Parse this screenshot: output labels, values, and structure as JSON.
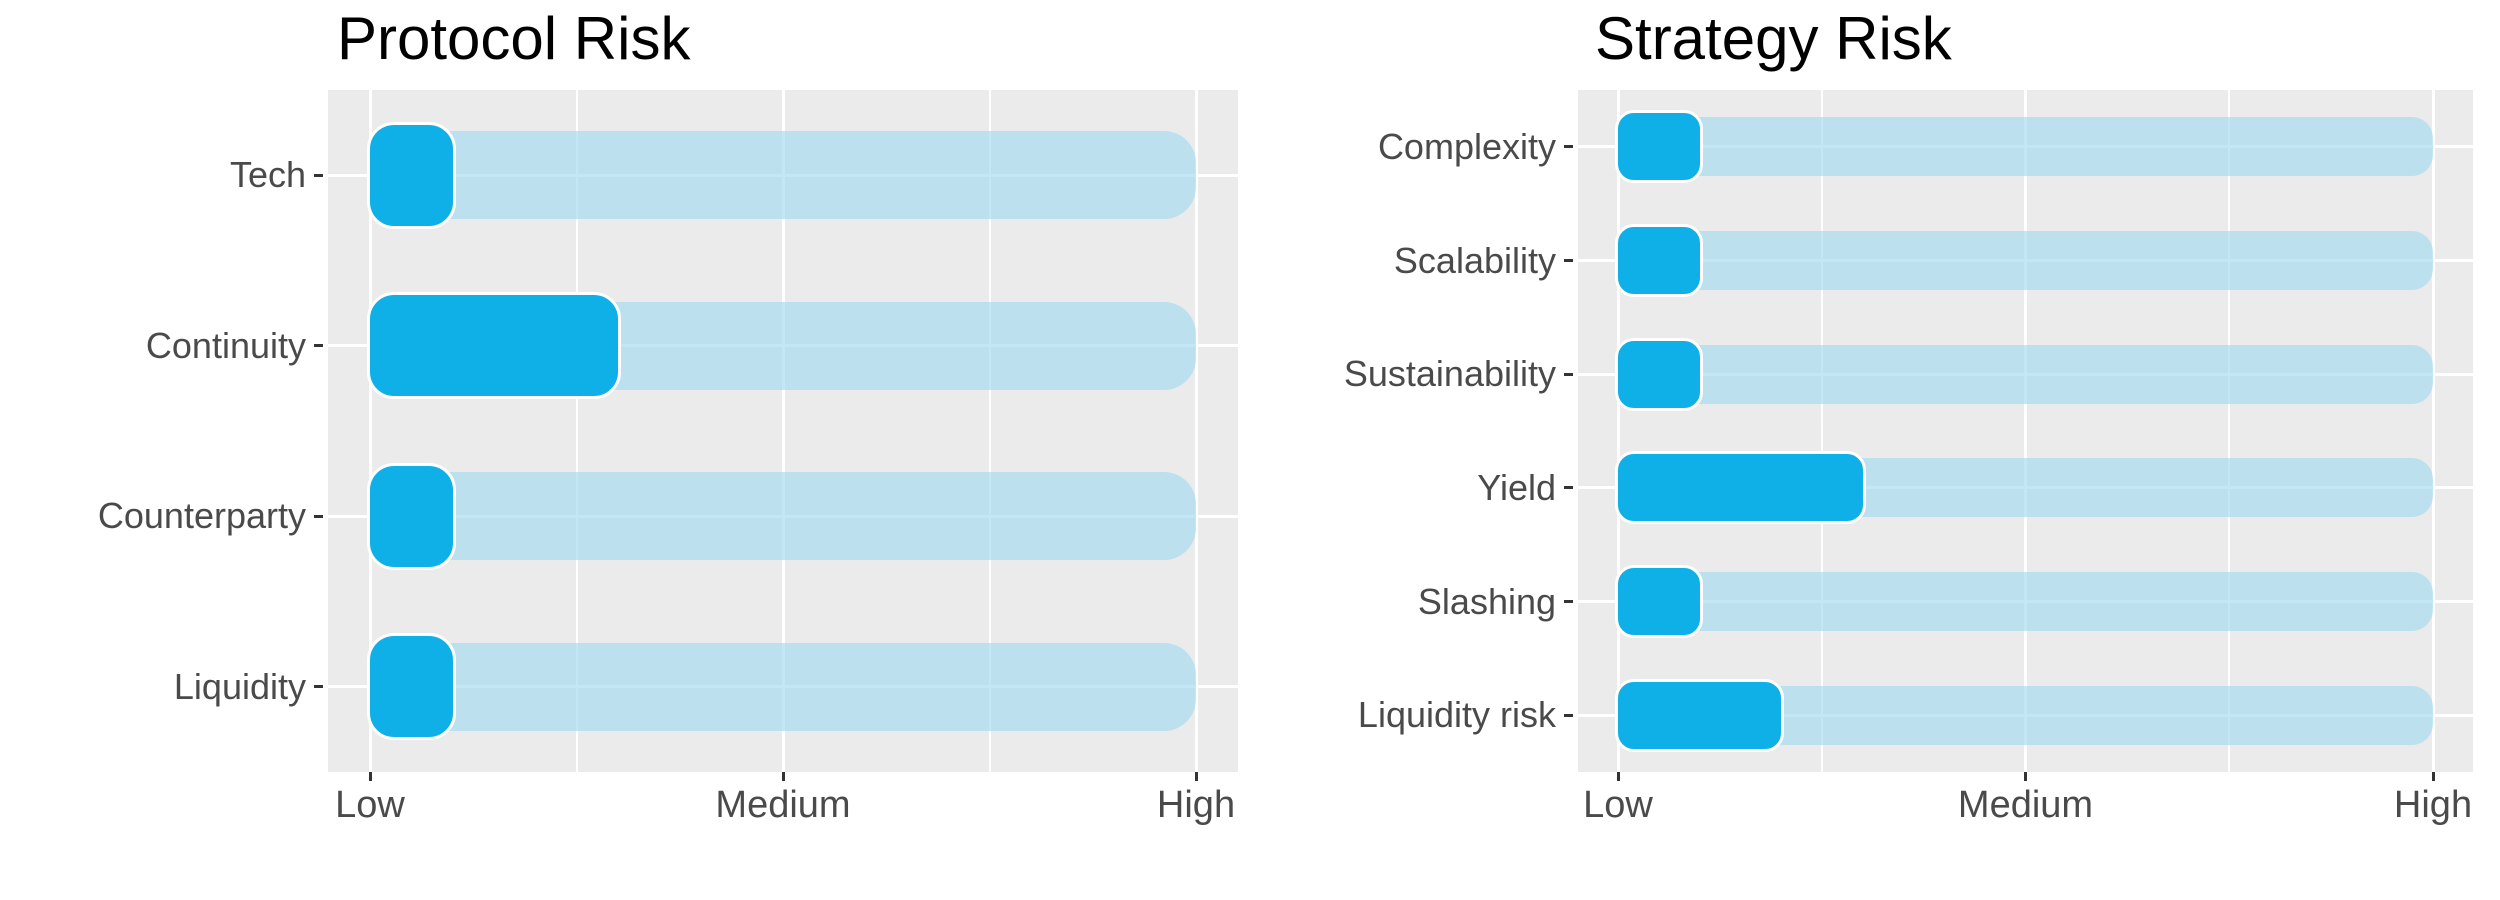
{
  "palette": {
    "page_bg": "#ffffff",
    "panel_bg": "#ebebeb",
    "grid": "#ffffff",
    "track_blue": "rgba(166,218,241,0.66)",
    "bar_blue": "#0fb0e8",
    "bar_outline": "#ffffff",
    "axis_text": "#4a4a4a",
    "title_text": "#000000",
    "tick_mark": "#333333"
  },
  "chart_data": [
    {
      "type": "bar",
      "orientation": "horizontal",
      "title": "Protocol Risk",
      "categories": [
        "Tech",
        "Continuity",
        "Counterparty",
        "Liquidity"
      ],
      "values": [
        0.1,
        0.3,
        0.1,
        0.1
      ],
      "value_scale": "fraction of axis where Low = 0, Medium = 0.5, High = 1",
      "track_full_length": 1,
      "x_tick_labels": [
        "Low",
        "Medium",
        "High"
      ],
      "x_tick_positions": [
        0,
        0.5,
        1
      ],
      "minor_grid_positions": [
        0.25,
        0.75
      ],
      "xlabel": "",
      "ylabel": "",
      "grid": "on",
      "legend": "none",
      "bar_style": "rounded dark-blue value bar over full-length light-blue track"
    },
    {
      "type": "bar",
      "orientation": "horizontal",
      "title": "Strategy Risk",
      "categories": [
        "Complexity",
        "Scalability",
        "Sustainability",
        "Yield",
        "Slashing",
        "Liquidity risk"
      ],
      "values": [
        0.1,
        0.1,
        0.1,
        0.3,
        0.1,
        0.2
      ],
      "value_scale": "fraction of axis where Low = 0, Medium = 0.5, High = 1",
      "track_full_length": 1,
      "x_tick_labels": [
        "Low",
        "Medium",
        "High"
      ],
      "x_tick_positions": [
        0,
        0.5,
        1
      ],
      "minor_grid_positions": [
        0.25,
        0.75
      ],
      "xlabel": "",
      "ylabel": "",
      "grid": "on",
      "legend": "none",
      "bar_style": "rounded dark-blue value bar over full-length light-blue track"
    }
  ]
}
